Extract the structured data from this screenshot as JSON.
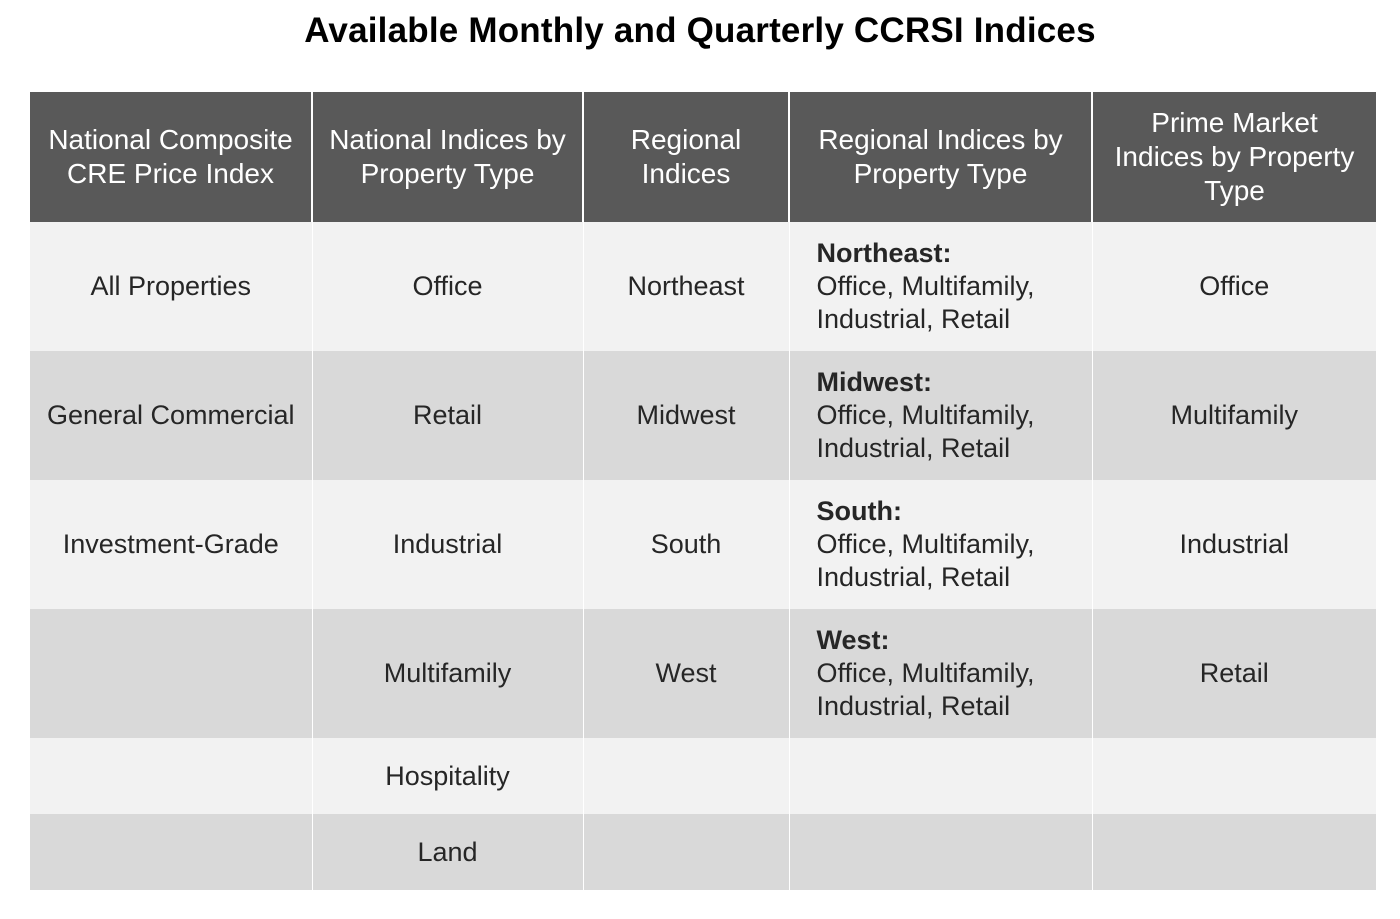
{
  "title": "Available Monthly and Quarterly CCRSI Indices",
  "table": {
    "headers": [
      "National Composite CRE Price Index",
      "National Indices by Property Type",
      "Regional Indices",
      "Regional Indices by Property Type",
      "Prime Market Indices by Property Type"
    ],
    "rows": [
      {
        "national_composite": "All Properties",
        "national_property_type": "Office",
        "regional": "Northeast",
        "regional_by_type": {
          "region": "Northeast:",
          "types": "Office, Multifamily, Industrial, Retail"
        },
        "prime_market": "Office"
      },
      {
        "national_composite": "General Commercial",
        "national_property_type": "Retail",
        "regional": "Midwest",
        "regional_by_type": {
          "region": "Midwest:",
          "types": "Office, Multifamily, Industrial, Retail"
        },
        "prime_market": "Multifamily"
      },
      {
        "national_composite": "Investment-Grade",
        "national_property_type": "Industrial",
        "regional": "South",
        "regional_by_type": {
          "region": "South:",
          "types": "Office, Multifamily, Industrial, Retail"
        },
        "prime_market": "Industrial"
      },
      {
        "national_composite": "",
        "national_property_type": "Multifamily",
        "regional": "West",
        "regional_by_type": {
          "region": "West:",
          "types": "Office, Multifamily, Industrial, Retail"
        },
        "prime_market": "Retail"
      },
      {
        "national_composite": "",
        "national_property_type": "Hospitality",
        "regional": "",
        "regional_by_type": {
          "region": "",
          "types": ""
        },
        "prime_market": ""
      },
      {
        "national_composite": "",
        "national_property_type": "Land",
        "regional": "",
        "regional_by_type": {
          "region": "",
          "types": ""
        },
        "prime_market": ""
      }
    ]
  },
  "colors": {
    "header_bg": "#595959",
    "header_text": "#ffffff",
    "row_light": "#f2f2f2",
    "row_dark": "#d9d9d9"
  }
}
